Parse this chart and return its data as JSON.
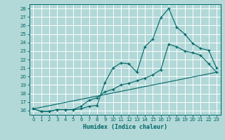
{
  "xlabel": "Humidex (Indice chaleur)",
  "bg_color": "#b2d8d8",
  "grid_color": "#ffffff",
  "line_color": "#006666",
  "xlim": [
    -0.5,
    23.5
  ],
  "ylim": [
    15.5,
    28.5
  ],
  "xticks": [
    0,
    1,
    2,
    3,
    4,
    5,
    6,
    7,
    8,
    9,
    10,
    11,
    12,
    13,
    14,
    15,
    16,
    17,
    18,
    19,
    20,
    21,
    22,
    23
  ],
  "yticks": [
    16,
    17,
    18,
    19,
    20,
    21,
    22,
    23,
    24,
    25,
    26,
    27,
    28
  ],
  "series1_x": [
    0,
    1,
    2,
    3,
    4,
    5,
    6,
    7,
    8,
    9,
    10,
    11,
    12,
    13,
    14,
    15,
    16,
    17,
    18,
    19,
    20,
    21,
    22,
    23
  ],
  "series1_y": [
    16.2,
    15.9,
    15.9,
    16.1,
    16.1,
    16.1,
    16.2,
    16.5,
    16.6,
    19.3,
    21.0,
    21.6,
    21.5,
    20.5,
    23.5,
    24.4,
    26.9,
    28.0,
    25.8,
    25.0,
    23.9,
    23.3,
    23.1,
    21.0
  ],
  "series2_x": [
    0,
    1,
    2,
    3,
    4,
    5,
    6,
    7,
    8,
    9,
    10,
    11,
    12,
    13,
    14,
    15,
    16,
    17,
    18,
    19,
    20,
    21,
    22,
    23
  ],
  "series2_y": [
    16.2,
    15.9,
    15.9,
    16.1,
    16.1,
    16.1,
    16.5,
    17.2,
    17.5,
    18.2,
    18.5,
    19.0,
    19.2,
    19.5,
    19.8,
    20.2,
    20.8,
    23.8,
    23.5,
    23.0,
    22.8,
    22.5,
    21.5,
    20.5
  ],
  "series3_x": [
    0,
    23
  ],
  "series3_y": [
    16.2,
    20.5
  ]
}
